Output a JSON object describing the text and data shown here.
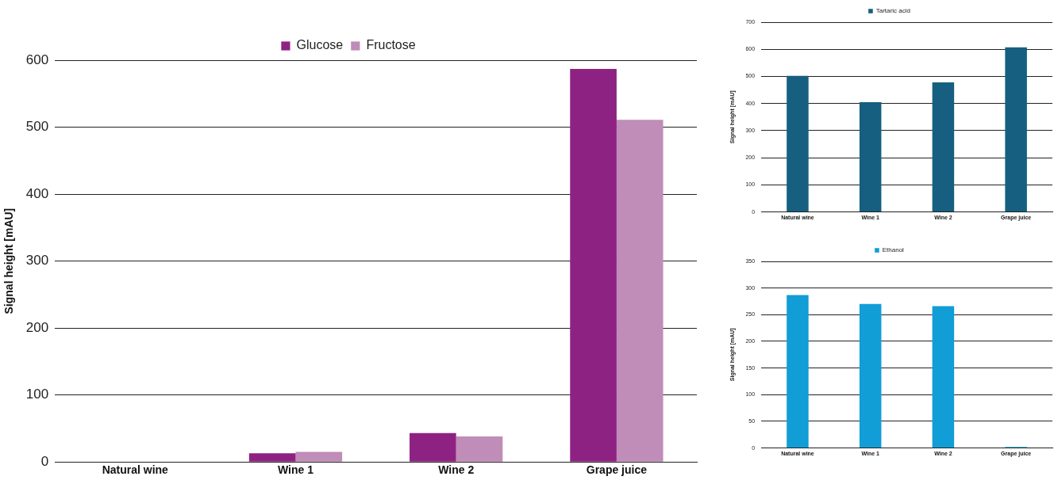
{
  "chart_data": [
    {
      "type": "bar",
      "ylabel": "Signal height [mAU]",
      "categories": [
        "Natural wine",
        "Wine 1",
        "Wine 2",
        "Grape juice"
      ],
      "series": [
        {
          "name": "Glucose",
          "color": "#8e2282",
          "values": [
            0,
            13,
            43,
            587
          ]
        },
        {
          "name": "Fructose",
          "color": "#c08cb8",
          "values": [
            0,
            15,
            38,
            511
          ]
        }
      ],
      "ylim": [
        0,
        600
      ],
      "yticks": [
        0,
        100,
        200,
        300,
        400,
        500,
        600
      ],
      "grid": "y",
      "legend": "top"
    },
    {
      "type": "bar",
      "ylabel": "Signal height [mAU]",
      "categories": [
        "Natural wine",
        "Wine 1",
        "Wine 2",
        "Grape juice"
      ],
      "series": [
        {
          "name": "Tartaric acid",
          "color": "#165f80",
          "values": [
            502,
            405,
            478,
            607
          ]
        }
      ],
      "ylim": [
        0,
        700
      ],
      "yticks": [
        0,
        100,
        200,
        300,
        400,
        500,
        600,
        700
      ],
      "grid": "y",
      "legend": "top"
    },
    {
      "type": "bar",
      "ylabel": "Signal height [mAU]",
      "categories": [
        "Natural wine",
        "Wine 1",
        "Wine 2",
        "Grape juice"
      ],
      "series": [
        {
          "name": "Ethanol",
          "color": "#119dd6",
          "values": [
            287,
            270,
            266,
            2
          ]
        }
      ],
      "ylim": [
        0,
        350
      ],
      "yticks": [
        0,
        50,
        100,
        150,
        200,
        250,
        300,
        350
      ],
      "grid": "y",
      "legend": "top"
    }
  ]
}
